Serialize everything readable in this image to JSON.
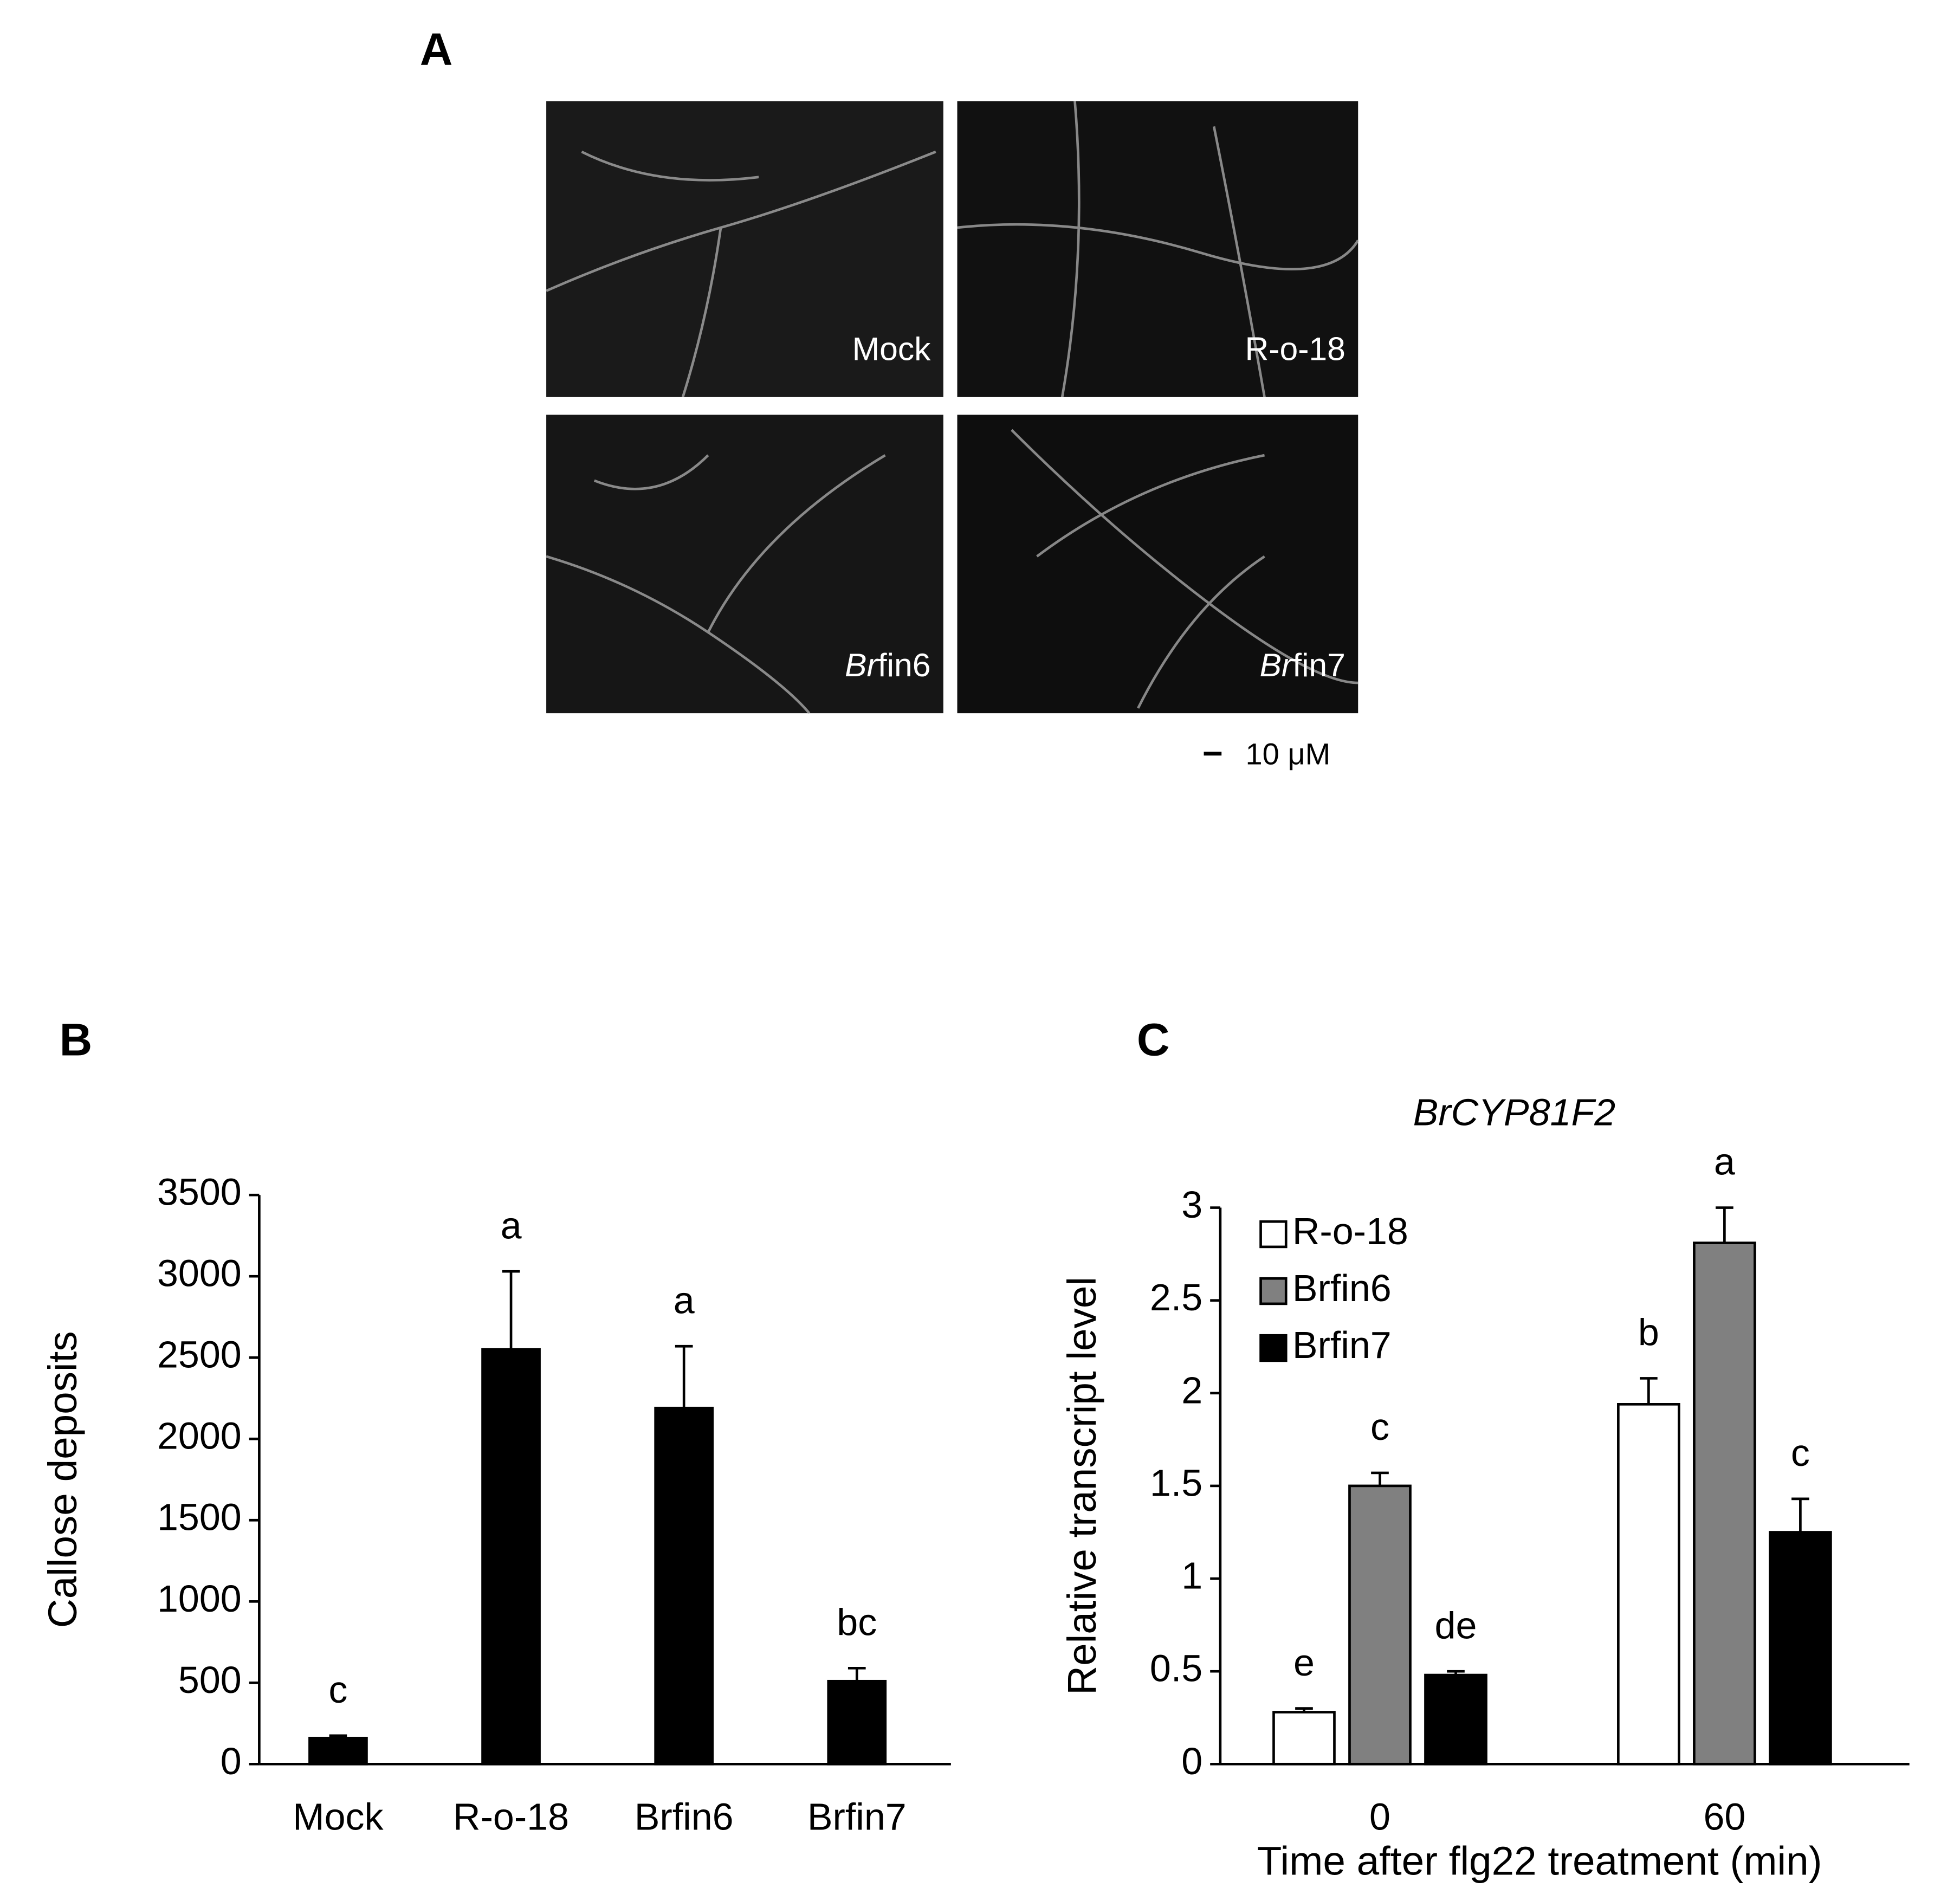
{
  "panel_a": {
    "label": "A",
    "images": [
      {
        "text": "Mock"
      },
      {
        "text": "R-o-18"
      },
      {
        "italic": "Br",
        "text": "fin6"
      },
      {
        "italic": "Br",
        "text": "fin7"
      }
    ],
    "scale_bar": "10 μM"
  },
  "chart_data": [
    {
      "type": "bar",
      "label": "B",
      "ylabel": "Callose deposits",
      "categories": [
        "Mock",
        "R-o-18",
        "Brfin6",
        "Brfin7"
      ],
      "values": [
        160,
        2550,
        2190,
        510
      ],
      "errors": [
        15,
        480,
        380,
        80
      ],
      "annotations": [
        "c",
        "a",
        "a",
        "bc"
      ],
      "color": "#000000",
      "ylim": [
        0,
        3500
      ],
      "yticks": [
        0,
        500,
        1000,
        1500,
        2000,
        2500,
        3000,
        3500
      ]
    },
    {
      "type": "bar",
      "label": "C",
      "title": "BrCYP81F2",
      "ylabel": "Relative transcript level",
      "xlabel": "Time after flg22 treatment (min)",
      "categories": [
        "0",
        "60"
      ],
      "series": [
        {
          "name": "R-o-18",
          "color": "#ffffff",
          "values": [
            0.28,
            1.94
          ],
          "errors": [
            0.02,
            0.14
          ],
          "annotations": [
            "e",
            "b"
          ]
        },
        {
          "name": "Brfin6",
          "color": "#808080",
          "values": [
            1.5,
            2.81
          ],
          "errors": [
            0.07,
            0.19
          ],
          "annotations": [
            "c",
            "a"
          ]
        },
        {
          "name": "Brfin7",
          "color": "#000000",
          "values": [
            0.48,
            1.25
          ],
          "errors": [
            0.02,
            0.18
          ],
          "annotations": [
            "de",
            "c"
          ]
        }
      ],
      "legend": "top-left",
      "ylim": [
        0,
        3
      ],
      "yticks": [
        0,
        0.5,
        1,
        1.5,
        2,
        2.5,
        3
      ]
    }
  ]
}
